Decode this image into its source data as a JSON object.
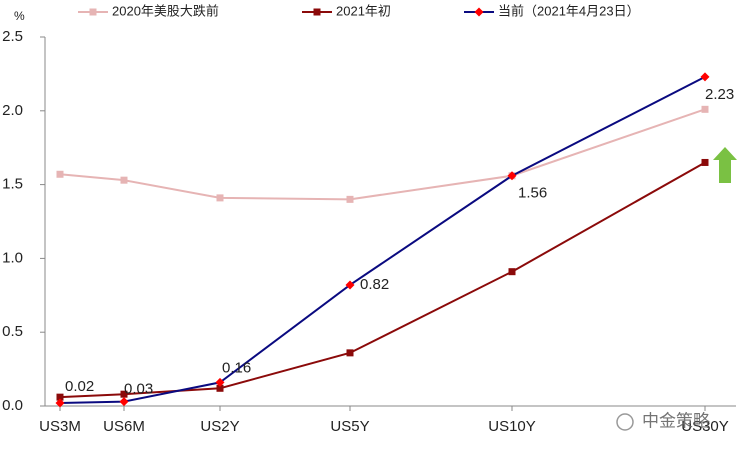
{
  "chart_data": {
    "type": "line",
    "y_unit": "%",
    "categories": [
      "US3M",
      "US6M",
      "US2Y",
      "US5Y",
      "US10Y",
      "US30Y"
    ],
    "series": [
      {
        "name": "2020年美股大跌前",
        "color": "#e6b4b4",
        "marker": "square",
        "values": [
          1.57,
          1.53,
          1.41,
          1.4,
          1.56,
          2.01
        ]
      },
      {
        "name": "2021年初",
        "color": "#8b0a0a",
        "marker": "square",
        "values": [
          0.06,
          0.08,
          0.12,
          0.36,
          0.91,
          1.65
        ]
      },
      {
        "name": "当前（2021年4月23日）",
        "color": "#0a0a80",
        "marker_color": "#ff0000",
        "marker": "diamond",
        "values": [
          0.02,
          0.03,
          0.16,
          0.82,
          1.56,
          2.23
        ],
        "show_labels": true
      }
    ],
    "ylim": [
      0,
      2.5
    ],
    "yticks": [
      {
        "value": 0,
        "label": "0.0"
      },
      0.5,
      {
        "value": 1,
        "label": "1.0"
      },
      1.5,
      {
        "value": 2,
        "label": "2.0"
      },
      2.5
    ],
    "grid": false,
    "legend": "top",
    "watermark": "中金策略"
  }
}
